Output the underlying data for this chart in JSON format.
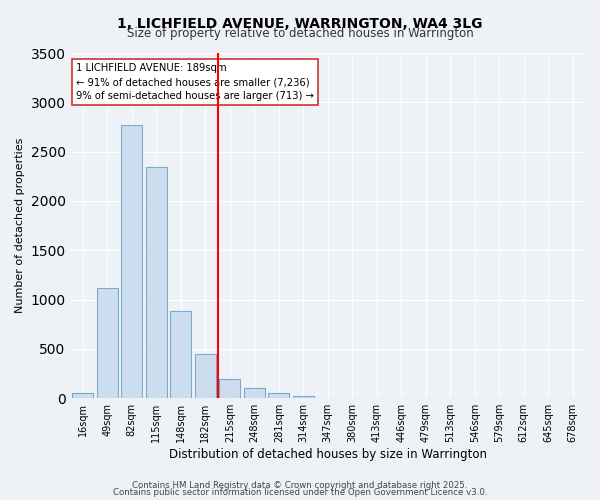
{
  "title": "1, LICHFIELD AVENUE, WARRINGTON, WA4 3LG",
  "subtitle": "Size of property relative to detached houses in Warrington",
  "xlabel": "Distribution of detached houses by size in Warrington",
  "ylabel": "Number of detached properties",
  "bar_color": "#ccddf0",
  "bar_edge_color": "#7aaaca",
  "bin_labels": [
    "16sqm",
    "49sqm",
    "82sqm",
    "115sqm",
    "148sqm",
    "182sqm",
    "215sqm",
    "248sqm",
    "281sqm",
    "314sqm",
    "347sqm",
    "380sqm",
    "413sqm",
    "446sqm",
    "479sqm",
    "513sqm",
    "546sqm",
    "579sqm",
    "612sqm",
    "645sqm",
    "678sqm"
  ],
  "bar_values": [
    50,
    1120,
    2770,
    2340,
    880,
    450,
    195,
    105,
    50,
    20,
    5,
    2,
    1,
    1,
    0,
    0,
    0,
    0,
    0,
    0,
    0
  ],
  "red_line_x": 5.5,
  "ylim": [
    0,
    3500
  ],
  "yticks": [
    0,
    500,
    1000,
    1500,
    2000,
    2500,
    3000,
    3500
  ],
  "annotation_line1": "1 LICHFIELD AVENUE: 189sqm",
  "annotation_line2": "← 91% of detached houses are smaller (7,236)",
  "annotation_line3": "9% of semi-detached houses are larger (713) →",
  "footnote1": "Contains HM Land Registry data © Crown copyright and database right 2025.",
  "footnote2": "Contains public sector information licensed under the Open Government Licence v3.0.",
  "background_color": "#eef2f7",
  "plot_bg_color": "#eef2f7",
  "grid_color": "#ffffff"
}
